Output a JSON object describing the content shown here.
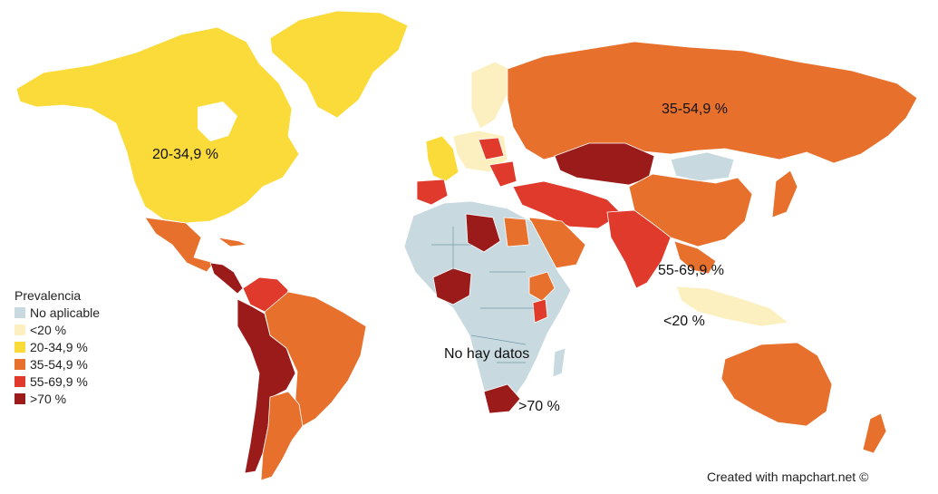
{
  "legend": {
    "title": "Prevalencia",
    "items": [
      {
        "label": "No aplicable",
        "color": "#c8dadf"
      },
      {
        "label": "<20 %",
        "color": "#fdf0c0"
      },
      {
        "label": "20-34,9 %",
        "color": "#fbdb3a"
      },
      {
        "label": "35-54,9 %",
        "color": "#e8702d"
      },
      {
        "label": "55-69,9 %",
        "color": "#e03a2c"
      },
      {
        "label": ">70 %",
        "color": "#9b1a1a"
      }
    ]
  },
  "labels": {
    "north_america": "20-34,9 %",
    "russia": "35-54,9 %",
    "southeast_asia": "55-69,9 %",
    "indonesia": "<20 %",
    "central_africa": "No hay datos",
    "south_africa": ">70 %"
  },
  "credit": "Created with mapchart.net ©"
}
